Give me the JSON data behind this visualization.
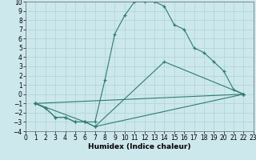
{
  "xlabel": "Humidex (Indice chaleur)",
  "bg_color": "#cce8ec",
  "grid_color": "#aad4d8",
  "line_color": "#2e7d6e",
  "xlim": [
    0,
    23
  ],
  "ylim": [
    -4,
    10
  ],
  "xticks": [
    0,
    1,
    2,
    3,
    4,
    5,
    6,
    7,
    8,
    9,
    10,
    11,
    12,
    13,
    14,
    15,
    16,
    17,
    18,
    19,
    20,
    21,
    22,
    23
  ],
  "yticks": [
    -4,
    -3,
    -2,
    -1,
    0,
    1,
    2,
    3,
    4,
    5,
    6,
    7,
    8,
    9,
    10
  ],
  "lines": [
    {
      "x": [
        1,
        2,
        3,
        4,
        5,
        6,
        7,
        8,
        9,
        10,
        11,
        12,
        13,
        14,
        15,
        16,
        17,
        18,
        19,
        20,
        21,
        22
      ],
      "y": [
        -1,
        -1.5,
        -2.5,
        -2.5,
        -3,
        -3,
        -3,
        1.5,
        6.5,
        8.5,
        10,
        10,
        10,
        9.5,
        7.5,
        7,
        5,
        4.5,
        3.5,
        2.5,
        0.5,
        0
      ]
    },
    {
      "x": [
        1,
        2,
        3,
        4,
        5,
        6,
        7,
        22
      ],
      "y": [
        -1,
        -1.5,
        -2.5,
        -2.5,
        -3,
        -3,
        -3.5,
        0
      ]
    },
    {
      "x": [
        1,
        6,
        7,
        14,
        22
      ],
      "y": [
        -1,
        -3,
        -3.5,
        3.5,
        0
      ]
    },
    {
      "x": [
        1,
        22
      ],
      "y": [
        -1,
        0
      ]
    }
  ],
  "tick_fontsize": 5.5,
  "xlabel_fontsize": 6.5,
  "xlabel_fontweight": "bold"
}
